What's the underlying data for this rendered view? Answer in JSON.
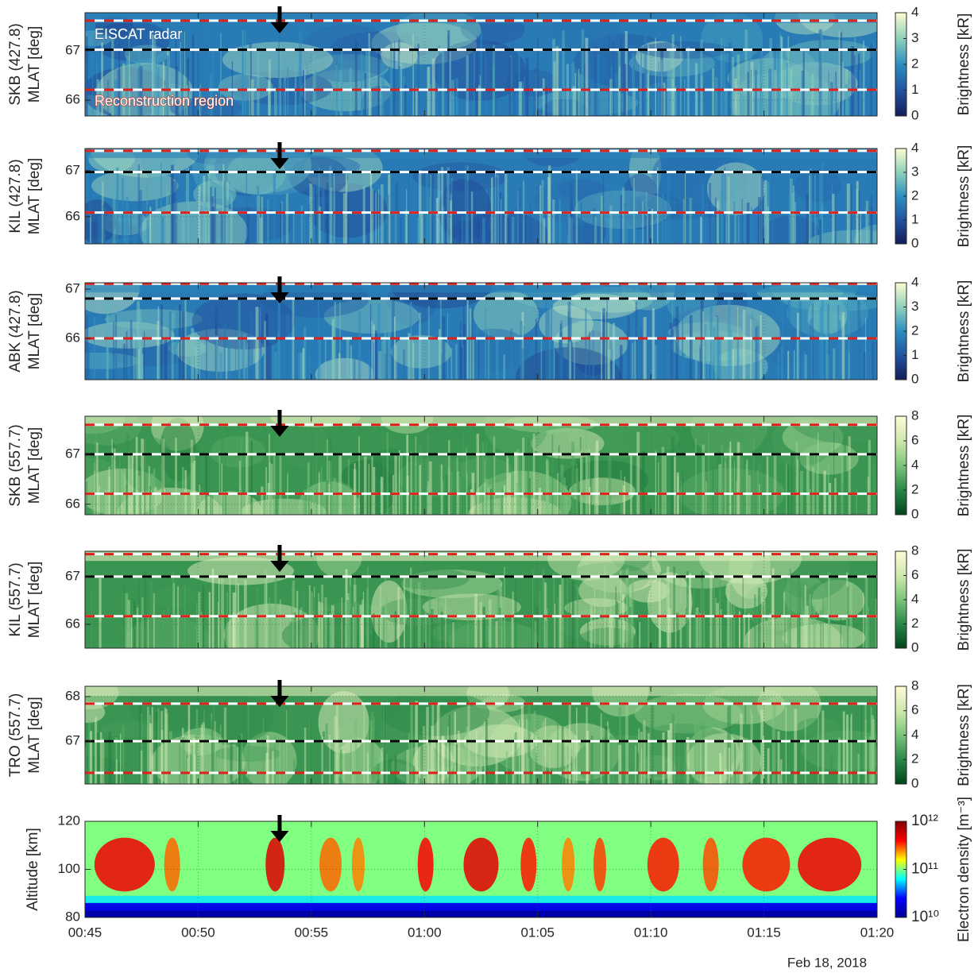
{
  "chart_data": [
    {
      "type": "heatmap",
      "ylabel": [
        "SKB (427.8)",
        "MLAT [deg]"
      ],
      "ylim": [
        65.68,
        67.77
      ],
      "yticks": [
        66,
        67
      ],
      "xlim": [
        45,
        80
      ],
      "colorbar": {
        "label": "Brightness [kR]",
        "lim": [
          0,
          4
        ],
        "ticks": [
          0,
          1,
          2,
          3,
          4
        ],
        "colormap": [
          "#141c58",
          "#2252a0",
          "#2c8fbf",
          "#8fd0bb",
          "#fdfdd0"
        ]
      },
      "hlines": [
        {
          "value": 67.61,
          "color": "#e0201b"
        },
        {
          "value": 67.02,
          "color": "#000000"
        },
        {
          "value": 66.21,
          "color": "#e0201b"
        }
      ],
      "annotations": [
        "EISCAT radar",
        "Reconstruction region"
      ],
      "arrow_x": 53.6
    },
    {
      "type": "heatmap",
      "ylabel": [
        "KIL (427.8)",
        "MLAT [deg]"
      ],
      "ylim": [
        65.41,
        67.48
      ],
      "yticks": [
        66,
        67
      ],
      "xlim": [
        45,
        80
      ],
      "colorbar": {
        "label": "Brightness [kR]",
        "lim": [
          0,
          4
        ],
        "ticks": [
          0,
          1,
          2,
          3,
          4
        ],
        "colormap": [
          "#141c58",
          "#2252a0",
          "#2c8fbf",
          "#8fd0bb",
          "#fdfdd0"
        ]
      },
      "hlines": [
        {
          "value": 67.43,
          "color": "#e0201b"
        },
        {
          "value": 66.97,
          "color": "#000000"
        },
        {
          "value": 66.09,
          "color": "#e0201b"
        }
      ],
      "arrow_x": 53.6
    },
    {
      "type": "heatmap",
      "ylabel": [
        "ABK (427.8)",
        "MLAT [deg]"
      ],
      "ylim": [
        65.16,
        67.13
      ],
      "yticks": [
        66,
        67
      ],
      "xlim": [
        45,
        80
      ],
      "colorbar": {
        "label": "Brightness [kR]",
        "lim": [
          0,
          4
        ],
        "ticks": [
          0,
          1,
          2,
          3,
          4
        ],
        "colormap": [
          "#141c58",
          "#2252a0",
          "#2c8fbf",
          "#8fd0bb",
          "#fdfdd0"
        ]
      },
      "hlines": [
        {
          "value": 67.11,
          "color": "#e0201b"
        },
        {
          "value": 66.81,
          "color": "#000000"
        },
        {
          "value": 66.0,
          "color": "#e0201b"
        }
      ],
      "arrow_x": 53.6
    },
    {
      "type": "heatmap",
      "ylabel": [
        "SKB (557.7)",
        "MLAT [deg]"
      ],
      "ylim": [
        65.79,
        67.76
      ],
      "yticks": [
        66,
        67
      ],
      "xlim": [
        45,
        80
      ],
      "colorbar": {
        "label": "Brightness [kR]",
        "lim": [
          0,
          8
        ],
        "ticks": [
          0,
          2,
          4,
          6,
          8
        ],
        "colormap": [
          "#00441b",
          "#2a8848",
          "#7cc47c",
          "#cfe8b0",
          "#fffbd5"
        ]
      },
      "hlines": [
        {
          "value": 67.59,
          "color": "#e0201b"
        },
        {
          "value": 67.0,
          "color": "#000000"
        },
        {
          "value": 66.21,
          "color": "#e0201b"
        }
      ],
      "arrow_x": 53.6
    },
    {
      "type": "heatmap",
      "ylabel": [
        "KIL (557.7)",
        "MLAT [deg]"
      ],
      "ylim": [
        65.5,
        67.53
      ],
      "yticks": [
        66,
        67
      ],
      "xlim": [
        45,
        80
      ],
      "colorbar": {
        "label": "Brightness [kR]",
        "lim": [
          0,
          8
        ],
        "ticks": [
          0,
          2,
          4,
          6,
          8
        ],
        "colormap": [
          "#00441b",
          "#2a8848",
          "#7cc47c",
          "#cfe8b0",
          "#fffbd5"
        ]
      },
      "hlines": [
        {
          "value": 67.47,
          "color": "#e0201b"
        },
        {
          "value": 67.0,
          "color": "#000000"
        },
        {
          "value": 66.17,
          "color": "#e0201b"
        }
      ],
      "arrow_x": 53.6
    },
    {
      "type": "heatmap",
      "ylabel": [
        "TRO (557.7)",
        "MLAT [deg]"
      ],
      "ylim": [
        66.04,
        68.23
      ],
      "yticks": [
        67,
        68
      ],
      "xlim": [
        45,
        80
      ],
      "colorbar": {
        "label": "Brightness [kR]",
        "lim": [
          0,
          8
        ],
        "ticks": [
          0,
          2,
          4,
          6,
          8
        ],
        "colormap": [
          "#00441b",
          "#2a8848",
          "#7cc47c",
          "#cfe8b0",
          "#fffbd5"
        ]
      },
      "hlines": [
        {
          "value": 67.84,
          "color": "#e0201b"
        },
        {
          "value": 67.0,
          "color": "#000000"
        },
        {
          "value": 66.29,
          "color": "#e0201b"
        }
      ],
      "arrow_x": 53.6
    },
    {
      "type": "density",
      "ylabel": [
        "Altitude [km]"
      ],
      "ylim": [
        80,
        120
      ],
      "yticks": [
        80,
        100,
        120
      ],
      "xlim": [
        45,
        80
      ],
      "xticks": [
        {
          "value": 45,
          "label": "00:45"
        },
        {
          "value": 50,
          "label": "00:50"
        },
        {
          "value": 55,
          "label": "00:55"
        },
        {
          "value": 60,
          "label": "01:00"
        },
        {
          "value": 65,
          "label": "01:05"
        },
        {
          "value": 70,
          "label": "01:10"
        },
        {
          "value": 75,
          "label": "01:15"
        },
        {
          "value": 80,
          "label": "01:20"
        }
      ],
      "date": "Feb 18, 2018",
      "colorbar": {
        "label": "Electron density [m⁻³]",
        "lim": [
          10000000000,
          1000000000000
        ],
        "log": true,
        "ticks": [
          {
            "value": 10000000000,
            "label": "10¹⁰"
          },
          {
            "value": 100000000000,
            "label": "10¹¹"
          },
          {
            "value": 1000000000000,
            "label": "10¹²"
          }
        ],
        "colormap": [
          "#00008f",
          "#0000ff",
          "#00ffff",
          "#ffff00",
          "#ff0000",
          "#800000"
        ]
      },
      "arrow_x": 53.6
    }
  ]
}
